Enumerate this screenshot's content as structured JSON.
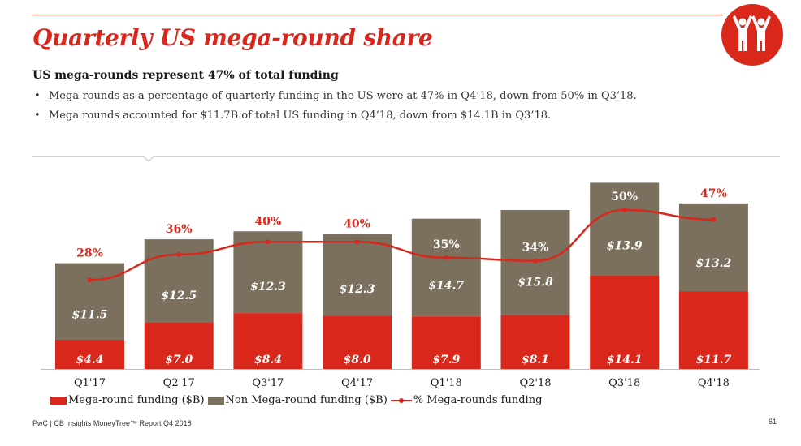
{
  "header": {
    "title": "Quarterly US mega-round share",
    "subtitle": "US mega-rounds represent 47% of total funding",
    "bullets": [
      "Mega-rounds as a percentage of quarterly funding in the US were at 47% in Q4’18, down from 50% in Q3’18.",
      "Mega rounds accounted for $11.7B of total US funding in Q4’18, down from $14.1B in Q3’18."
    ],
    "bullet_symbol": "•"
  },
  "logo": {
    "icon": "two-people-arms-raised-icon"
  },
  "colors": {
    "accent": "#d9271c",
    "non_mega": "#7b6f5e",
    "text": "#1a1a1a"
  },
  "chart_data": {
    "type": "bar",
    "stacked": true,
    "categories": [
      "Q1'17",
      "Q2'17",
      "Q3'17",
      "Q4'17",
      "Q1'18",
      "Q2'18",
      "Q3'18",
      "Q4'18"
    ],
    "series": [
      {
        "name": "Mega-round funding ($B)",
        "values": [
          4.4,
          7.0,
          8.4,
          8.0,
          7.9,
          8.1,
          14.1,
          11.7
        ],
        "labels": [
          "$4.4",
          "$7.0",
          "$8.4",
          "$8.0",
          "$7.9",
          "$8.1",
          "$14.1",
          "$11.7"
        ]
      },
      {
        "name": "Non Mega-round funding ($B)",
        "values": [
          11.5,
          12.5,
          12.3,
          12.3,
          14.7,
          15.8,
          13.9,
          13.2
        ],
        "labels": [
          "$11.5",
          "$12.5",
          "$12.3",
          "$12.3",
          "$14.7",
          "$15.8",
          "$13.9",
          "$13.2"
        ]
      }
    ],
    "line_series": {
      "name": "% Mega-rounds funding",
      "values": [
        28,
        36,
        40,
        40,
        35,
        34,
        50,
        47
      ],
      "labels": [
        "28%",
        "36%",
        "40%",
        "40%",
        "35%",
        "34%",
        "50%",
        "47%"
      ]
    },
    "ylim": [
      0,
      28
    ],
    "line_ylim": [
      0,
      62
    ],
    "legend_position": "bottom-left"
  },
  "footer": {
    "source": "PwC | CB Insights MoneyTree™ Report Q4 2018",
    "page": "61"
  }
}
